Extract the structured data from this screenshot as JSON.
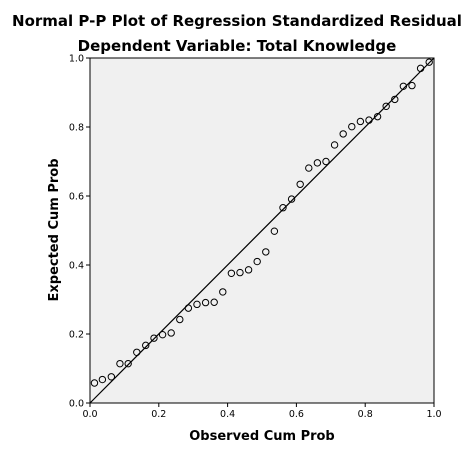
{
  "chart_data": {
    "type": "scatter",
    "title": "Normal P-P Plot of Regression Standardized Residual",
    "subtitle": "Dependent Variable: Total Knowledge",
    "xlabel": "Observed Cum Prob",
    "ylabel": "Expected Cum Prob",
    "xlim": [
      0.0,
      1.0
    ],
    "ylim": [
      0.0,
      1.0
    ],
    "xticks": [
      "0.0",
      "0.2",
      "0.4",
      "0.6",
      "0.8",
      "1.0"
    ],
    "yticks": [
      "0.0",
      "0.2",
      "0.4",
      "0.6",
      "0.8",
      "1.0"
    ],
    "grid": false,
    "reference_line": [
      [
        0,
        0
      ],
      [
        1,
        1
      ]
    ],
    "plot_background": "#f0f0f0",
    "points": [
      [
        0.013,
        0.058
      ],
      [
        0.036,
        0.068
      ],
      [
        0.062,
        0.076
      ],
      [
        0.087,
        0.114
      ],
      [
        0.111,
        0.114
      ],
      [
        0.136,
        0.147
      ],
      [
        0.162,
        0.167
      ],
      [
        0.186,
        0.188
      ],
      [
        0.211,
        0.198
      ],
      [
        0.236,
        0.203
      ],
      [
        0.261,
        0.242
      ],
      [
        0.286,
        0.275
      ],
      [
        0.311,
        0.286
      ],
      [
        0.336,
        0.291
      ],
      [
        0.361,
        0.292
      ],
      [
        0.386,
        0.322
      ],
      [
        0.411,
        0.376
      ],
      [
        0.436,
        0.378
      ],
      [
        0.461,
        0.386
      ],
      [
        0.486,
        0.41
      ],
      [
        0.511,
        0.438
      ],
      [
        0.536,
        0.498
      ],
      [
        0.561,
        0.566
      ],
      [
        0.586,
        0.591
      ],
      [
        0.611,
        0.634
      ],
      [
        0.636,
        0.681
      ],
      [
        0.661,
        0.696
      ],
      [
        0.686,
        0.7
      ],
      [
        0.711,
        0.748
      ],
      [
        0.736,
        0.78
      ],
      [
        0.761,
        0.801
      ],
      [
        0.786,
        0.816
      ],
      [
        0.811,
        0.82
      ],
      [
        0.836,
        0.83
      ],
      [
        0.861,
        0.86
      ],
      [
        0.886,
        0.88
      ],
      [
        0.911,
        0.918
      ],
      [
        0.936,
        0.92
      ],
      [
        0.961,
        0.97
      ],
      [
        0.986,
        0.988
      ]
    ]
  }
}
